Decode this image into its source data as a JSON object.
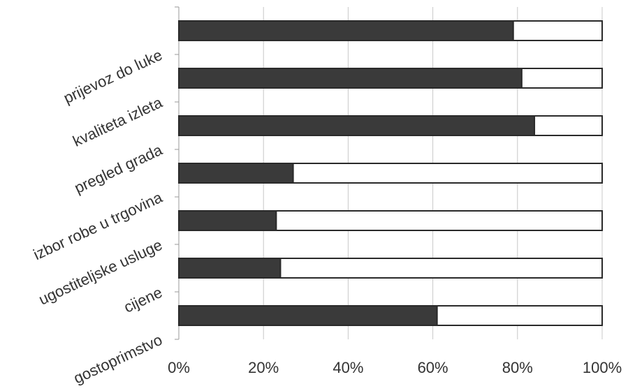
{
  "chart_data": {
    "type": "bar",
    "orientation": "horizontal",
    "stacked": "100%",
    "categories": [
      "prijevoz do luke",
      "kvaliteta izleta",
      "pregled grada",
      "izbor robe u trgovina",
      "ugostiteljske usluge",
      "cijene",
      "gostoprimstvo"
    ],
    "series": [
      {
        "values": [
          79,
          81,
          84,
          27,
          23,
          24,
          61
        ],
        "color": "#3a3a3a"
      },
      {
        "values": [
          21,
          19,
          16,
          73,
          77,
          76,
          39
        ],
        "color": "#ffffff"
      }
    ],
    "xlim": [
      0,
      100
    ],
    "x_ticks": [
      "0%",
      "20%",
      "40%",
      "60%",
      "80%",
      "100%"
    ],
    "grid": true,
    "legend": "none"
  }
}
